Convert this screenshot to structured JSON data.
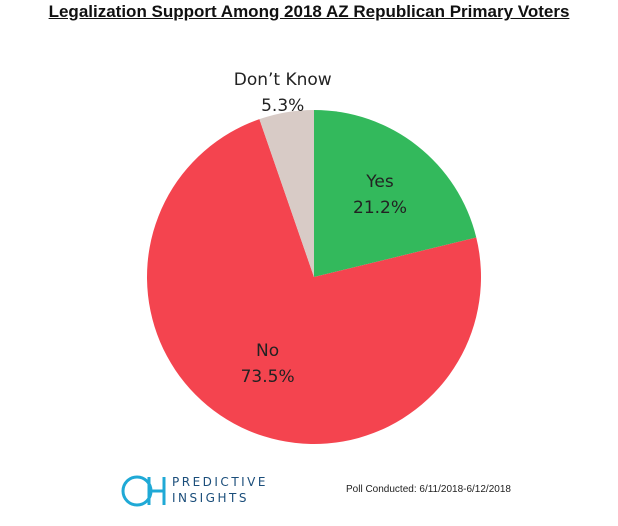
{
  "chart_data": {
    "type": "pie",
    "title": "Legalization Support Among 2018 AZ Republican Primary Voters",
    "slices": [
      {
        "label": "Yes",
        "value": 21.2,
        "display": "21.2%",
        "color": "#33b95c"
      },
      {
        "label": "No",
        "value": 73.5,
        "display": "73.5%",
        "color": "#f4444f"
      },
      {
        "label": "Don’t Know",
        "value": 5.3,
        "display": "5.3%",
        "color": "#d8cbc6"
      }
    ]
  },
  "brand": {
    "line1": "PREDICTIVE",
    "line2": "INSIGHTS",
    "logo_color": "#1fa9d6"
  },
  "footer": {
    "poll_date": "Poll Conducted: 6/11/2018-6/12/2018"
  }
}
